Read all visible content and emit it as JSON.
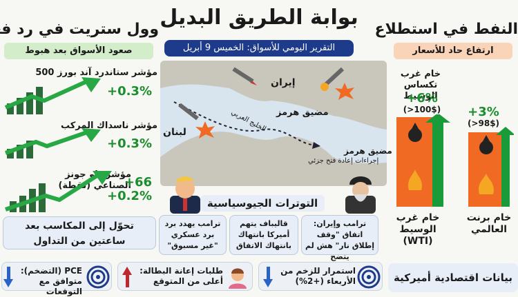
{
  "header": {
    "title": "بوابة الطريق البديل",
    "subtitle": "التقرير اليومي للأسواق: الخميس 9 أبريل"
  },
  "left": {
    "heading": "وول ستريت في رد فعل",
    "banner": "صعود الأسواق بعد هبوط",
    "indices": [
      {
        "name": "مؤشر ستاندرد آند بورز 500",
        "change": "+0.3%"
      },
      {
        "name": "مؤشر ناسداك المركب",
        "change": "+0.3%"
      },
      {
        "name": "مؤشر داو جونز الصناعي (نقطة)",
        "change": "+0.2%",
        "points": "+66"
      }
    ],
    "note": "تحوّل إلى المكاسب بعد ساعتين من التداول"
  },
  "right": {
    "heading": "النفط في استطلاع",
    "banner": "ارتفاع حاد للأسعار",
    "oil": [
      {
        "name": "خام غرب تكساس الوسيط",
        "change": "+6%",
        "price": "(>100$)",
        "bottom": "خام غرب الوسيط (WTI)"
      },
      {
        "name": "",
        "change": "+3%",
        "price": "(>98$)",
        "bottom": "خام برنت العالمي"
      }
    ],
    "footer": "بيانات اقتصادية أميركية"
  },
  "map": {
    "iran": "إيران",
    "lebanon": "لبنان",
    "hormuz": "مضيق هرمز",
    "hormuz2": "مضيق هرمز",
    "reopen": "إجراءات إعادة فتح جزئي",
    "gulf": "الخليج العربي"
  },
  "geo": {
    "heading": "التوترات الجيوسياسية",
    "cards": [
      {
        "text": "ترامب يهدد برد برد عسكري \"غير مسبوق\""
      },
      {
        "text": "قاليباف يتهم أميركا بانتهاك بانتهاك الاتفاق"
      },
      {
        "text": "ترامب وإيران: اتفاق \"وقف إطلاق نار\" هش لم يتضح"
      }
    ]
  },
  "bottom": [
    {
      "text": "PCE (التضخم): متوافق مع التوقعات",
      "arrow": "down"
    },
    {
      "text": "طلبات إعانة البطالة: أعلى من المتوقع",
      "arrow": "up"
    },
    {
      "text": "استمرار للزخم من الأربعاء (+2%)",
      "arrow": "down"
    }
  ],
  "colors": {
    "accent_blue": "#1e3a8a",
    "gain_green": "#1a8d2c",
    "oil_orange": "#f06a24",
    "banner_green": "#d3ecc9",
    "banner_orange": "#f9d4b9"
  }
}
